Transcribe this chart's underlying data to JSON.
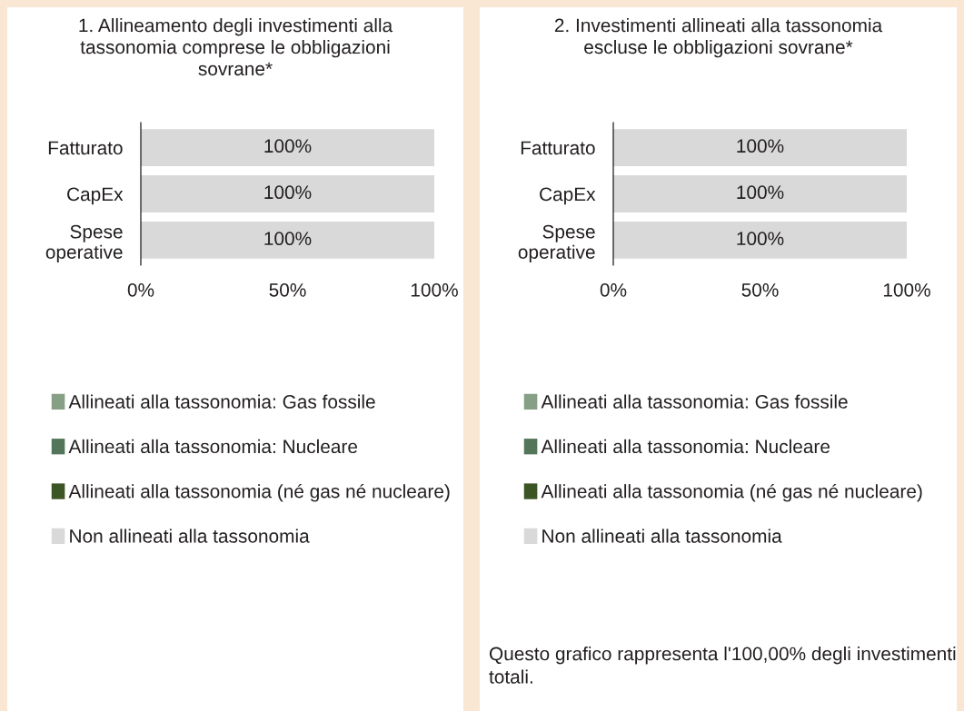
{
  "chart_data": [
    {
      "type": "bar",
      "orientation": "horizontal",
      "stacked": true,
      "title": "1. Allineamento degli investimenti alla tassonomia comprese le obbligazioni sovrane*",
      "categories": [
        "Fatturato",
        "CapEx",
        "Spese\noperative"
      ],
      "series": [
        {
          "name": "Allineati alla tassonomia: Gas fossile",
          "color": "#87a085",
          "values": [
            0,
            0,
            0
          ],
          "value_labels": [
            null,
            null,
            null
          ]
        },
        {
          "name": "Allineati alla tassonomia: Nucleare",
          "color": "#53765a",
          "values": [
            0,
            0,
            0
          ],
          "value_labels": [
            null,
            null,
            null
          ]
        },
        {
          "name": "Allineati alla tassonomia (né gas né nucleare)",
          "color": "#3b5525",
          "values": [
            0,
            0,
            0
          ],
          "value_labels": [
            null,
            null,
            null
          ]
        },
        {
          "name": "Non allineati alla tassonomia",
          "color": "#d9d9d9",
          "values": [
            100,
            100,
            100
          ],
          "value_labels": [
            "100%",
            "100%",
            "100%"
          ]
        }
      ],
      "xlim": [
        0,
        100
      ],
      "xticks": [
        {
          "value": 0,
          "label": "0%"
        },
        {
          "value": 50,
          "label": "50%"
        },
        {
          "value": 100,
          "label": "100%"
        }
      ],
      "legend": "bottom",
      "grid": false
    },
    {
      "type": "bar",
      "orientation": "horizontal",
      "stacked": true,
      "title": "2. Investimenti allineati alla tassonomia escluse le obbligazioni sovrane*",
      "categories": [
        "Fatturato",
        "CapEx",
        "Spese\noperative"
      ],
      "series": [
        {
          "name": "Allineati alla tassonomia: Gas fossile",
          "color": "#87a085",
          "values": [
            0,
            0,
            0
          ],
          "value_labels": [
            null,
            null,
            null
          ]
        },
        {
          "name": "Allineati alla tassonomia: Nucleare",
          "color": "#53765a",
          "values": [
            0,
            0,
            0
          ],
          "value_labels": [
            null,
            null,
            null
          ]
        },
        {
          "name": "Allineati alla tassonomia (né gas né nucleare)",
          "color": "#3b5525",
          "values": [
            0,
            0,
            0
          ],
          "value_labels": [
            null,
            null,
            null
          ]
        },
        {
          "name": "Non allineati alla tassonomia",
          "color": "#d9d9d9",
          "values": [
            100,
            100,
            100
          ],
          "value_labels": [
            "100%",
            "100%",
            "100%"
          ]
        }
      ],
      "xlim": [
        0,
        100
      ],
      "xticks": [
        {
          "value": 0,
          "label": "0%"
        },
        {
          "value": 50,
          "label": "50%"
        },
        {
          "value": 100,
          "label": "100%"
        }
      ],
      "legend": "bottom",
      "grid": false,
      "annotations": [
        "Questo grafico rappresenta l'100,00% degli investimenti totali."
      ]
    }
  ]
}
